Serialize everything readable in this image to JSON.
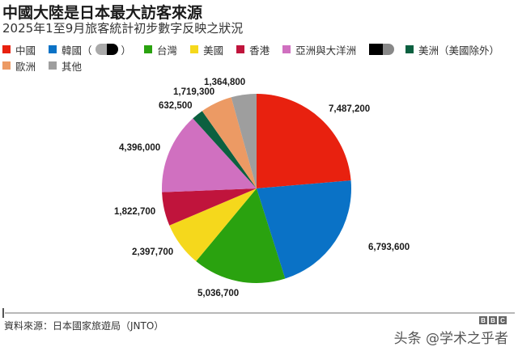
{
  "header": {
    "title": "中國大陸是日本最大訪客來源",
    "subtitle": "2025年1至9月旅客統計初步數字反映之狀況"
  },
  "legend": {
    "row1": [
      {
        "label": "中國",
        "color": "#e8210f"
      },
      {
        "label": "韓國（",
        "color": "#0a72c6",
        "obscured": true
      },
      {
        "label": "台灣",
        "color": "#2aa20f"
      },
      {
        "label": "美國",
        "color": "#f5d81c"
      },
      {
        "label": "香港",
        "color": "#c0143c"
      },
      {
        "label": "亞洲與大洋洲",
        "color": "#d070c0"
      },
      {
        "label": "美洲（美國除外）",
        "color": "#0b6040",
        "preceded_by_obscured": true
      }
    ],
    "row2": [
      {
        "label": "歐洲",
        "color": "#ec9a64"
      },
      {
        "label": "其他",
        "color": "#9e9e9e"
      }
    ]
  },
  "chart_data": {
    "type": "pie",
    "title": "中國大陸是日本最大訪客來源",
    "subtitle": "2025年1至9月旅客統計初步數字反映之狀況",
    "start_angle": "12 o'clock, clockwise",
    "categories": [
      "中國",
      "韓國",
      "台灣",
      "美國",
      "香港",
      "亞洲與大洋洲",
      "美洲（美國除外）",
      "歐洲",
      "其他"
    ],
    "values": [
      7487200,
      6793600,
      5036700,
      2397700,
      1822700,
      4396000,
      632500,
      1719300,
      1364800
    ],
    "labels": [
      "7,487,200",
      "6,793,600",
      "5,036,700",
      "2,397,700",
      "1,822,700",
      "4,396,000",
      "632,500",
      "1,719,300",
      "1,364,800"
    ],
    "colors": [
      "#e8210f",
      "#0a72c6",
      "#2aa20f",
      "#f5d81c",
      "#c0143c",
      "#d070c0",
      "#0b6040",
      "#ec9a64",
      "#9e9e9e"
    ],
    "legend_position": "top"
  },
  "footer": {
    "source": "資料來源：日本國家旅遊局（JNTO）",
    "watermark": "头条 @学术之乎者",
    "logo": [
      "B",
      "B",
      "C"
    ]
  }
}
